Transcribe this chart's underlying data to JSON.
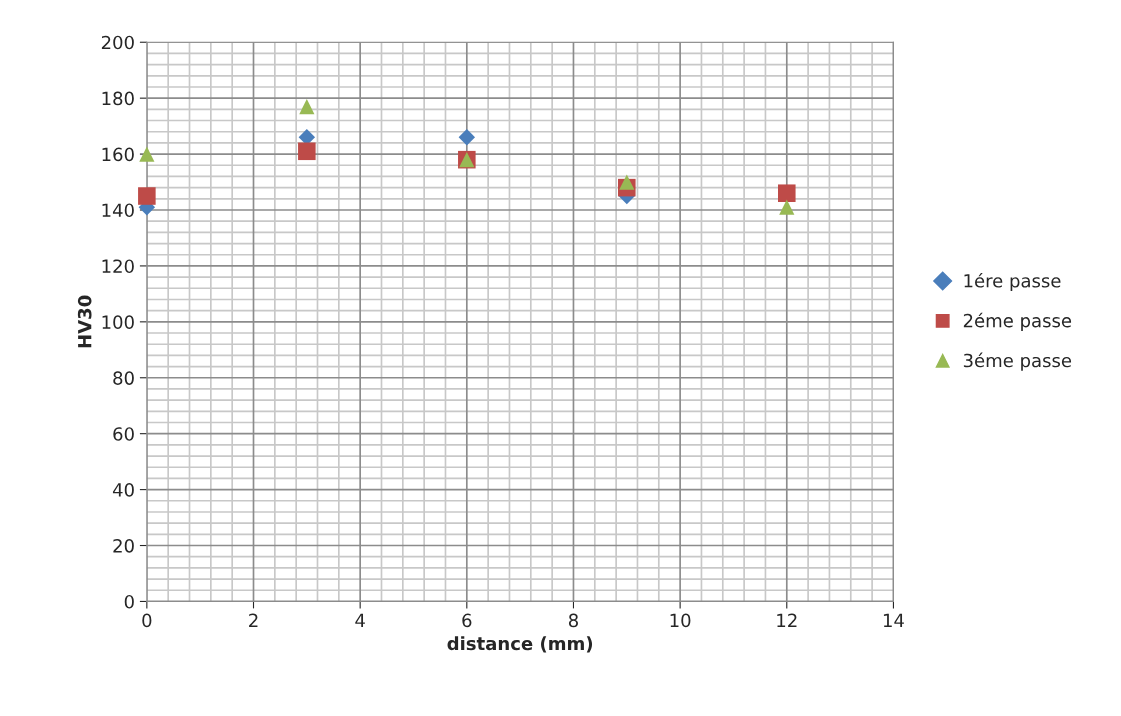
{
  "chart_data": {
    "type": "scatter",
    "xlabel": "distance (mm)",
    "ylabel": "HV30",
    "x": [
      0,
      3,
      6,
      9,
      12
    ],
    "series": [
      {
        "name": "1ére passe",
        "color": "#4a7ebb",
        "marker": "diamond",
        "values": [
          141,
          166,
          166,
          145,
          null
        ]
      },
      {
        "name": "2éme passe",
        "color": "#be4b48",
        "marker": "square",
        "values": [
          145,
          161,
          158,
          148,
          146
        ]
      },
      {
        "name": "3éme passe",
        "color": "#98b954",
        "marker": "triangle",
        "values": [
          160,
          177,
          158,
          150,
          141
        ]
      }
    ],
    "xlim": [
      0,
      14
    ],
    "xticks": [
      0,
      2,
      4,
      6,
      8,
      10,
      12,
      14
    ],
    "ylim": [
      0,
      200
    ],
    "yticks": [
      0,
      20,
      40,
      60,
      80,
      100,
      120,
      140,
      160,
      180,
      200
    ],
    "grid": true,
    "legend": "right"
  }
}
